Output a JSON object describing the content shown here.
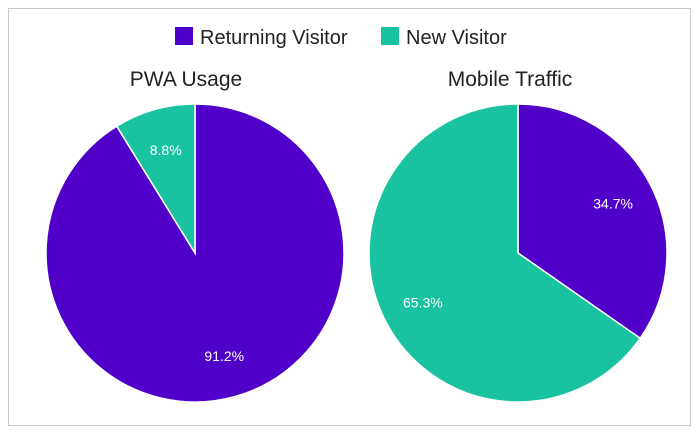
{
  "chart_data": [
    {
      "type": "pie",
      "title": "PWA Usage",
      "slices": [
        {
          "name": "Returning Visitor",
          "value": 91.2,
          "label": "91.2%",
          "color": "#5000c8"
        },
        {
          "name": "New Visitor",
          "value": 8.8,
          "label": "8.8%",
          "color": "#19c3a0"
        }
      ]
    },
    {
      "type": "pie",
      "title": "Mobile Traffic",
      "slices": [
        {
          "name": "Returning Visitor",
          "value": 34.7,
          "label": "34.7%",
          "color": "#5000c8"
        },
        {
          "name": "New Visitor",
          "value": 65.3,
          "label": "65.3%",
          "color": "#19c3a0"
        }
      ]
    }
  ],
  "legend": {
    "placement": "top-center",
    "items": [
      {
        "label": "Returning Visitor",
        "color": "#5000c8"
      },
      {
        "label": "New Visitor",
        "color": "#19c3a0"
      }
    ]
  }
}
